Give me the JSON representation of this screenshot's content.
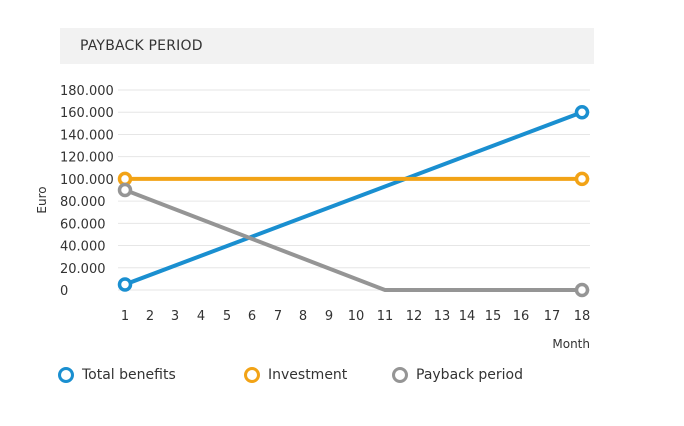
{
  "chart_data": {
    "type": "line",
    "title": "PAYBACK PERIOD",
    "xlabel": "Month",
    "ylabel": "Euro",
    "categories": [
      "1",
      "2",
      "3",
      "4",
      "5",
      "6",
      "7",
      "8",
      "9",
      "10",
      "11",
      "12",
      "13",
      "14",
      "15",
      "16",
      "17",
      "18"
    ],
    "ylim": [
      0,
      180000
    ],
    "yticks": [
      "0",
      "20.000",
      "40.000",
      "60.000",
      "80.000",
      "100.000",
      "120.000",
      "140.000",
      "160.000",
      "180.000"
    ],
    "grid": true,
    "legend_position": "bottom",
    "series": [
      {
        "name": "Total benefits",
        "color": "#1a8fd0",
        "points": [
          [
            1,
            5000
          ],
          [
            18,
            160000
          ]
        ],
        "markers": [
          1,
          18
        ]
      },
      {
        "name": "Investment",
        "color": "#f2a316",
        "points": [
          [
            1,
            100000
          ],
          [
            18,
            100000
          ]
        ],
        "markers": [
          1,
          18
        ]
      },
      {
        "name": "Payback period",
        "color": "#959595",
        "points": [
          [
            1,
            90000
          ],
          [
            11,
            0
          ],
          [
            18,
            0
          ]
        ],
        "markers": [
          1,
          18
        ]
      }
    ]
  }
}
